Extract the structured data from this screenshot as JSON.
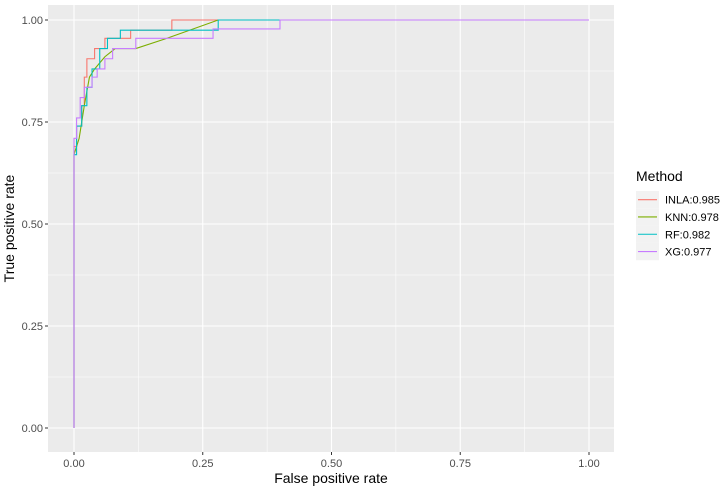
{
  "chart_data": {
    "type": "line",
    "title": "",
    "xlabel": "False positive rate",
    "ylabel": "True positive rate",
    "xlim": [
      0,
      1
    ],
    "ylim": [
      0,
      1
    ],
    "xticks": [
      0,
      0.25,
      0.5,
      0.75,
      1
    ],
    "xtick_labels": [
      "0.00",
      "0.25",
      "0.50",
      "0.75",
      "1.00"
    ],
    "yticks": [
      0,
      0.25,
      0.5,
      0.75,
      1
    ],
    "ytick_labels": [
      "0.00",
      "0.25",
      "0.50",
      "0.75",
      "1.00"
    ],
    "grid": true,
    "legend": {
      "title": "Method",
      "position": "right"
    },
    "series": [
      {
        "name": "INLA:0.985",
        "color": "#F8766D",
        "x": [
          0,
          0,
          0.005,
          0.005,
          0.015,
          0.015,
          0.02,
          0.02,
          0.025,
          0.025,
          0.04,
          0.04,
          0.06,
          0.06,
          0.11,
          0.11,
          0.19,
          0.19,
          1
        ],
        "y": [
          0,
          0.69,
          0.69,
          0.74,
          0.74,
          0.79,
          0.79,
          0.86,
          0.86,
          0.905,
          0.905,
          0.93,
          0.93,
          0.955,
          0.955,
          0.975,
          0.975,
          1,
          1
        ]
      },
      {
        "name": "KNN:0.978",
        "color": "#7CAE00",
        "x": [
          0,
          0,
          0.01,
          0.02,
          0.03,
          0.04,
          0.06,
          0.08,
          0.12,
          0.18,
          0.28,
          1
        ],
        "y": [
          0,
          0.67,
          0.71,
          0.79,
          0.86,
          0.88,
          0.91,
          0.93,
          0.93,
          0.955,
          1,
          1
        ]
      },
      {
        "name": "RF:0.982",
        "color": "#00BFC4",
        "x": [
          0,
          0,
          0.005,
          0.005,
          0.015,
          0.015,
          0.025,
          0.025,
          0.035,
          0.035,
          0.05,
          0.05,
          0.065,
          0.065,
          0.09,
          0.09,
          0.28,
          0.28,
          1
        ],
        "y": [
          0,
          0.67,
          0.67,
          0.74,
          0.74,
          0.79,
          0.79,
          0.835,
          0.835,
          0.88,
          0.88,
          0.93,
          0.93,
          0.955,
          0.955,
          0.975,
          0.975,
          1,
          1
        ]
      },
      {
        "name": "XG:0.977",
        "color": "#C77CFF",
        "x": [
          0,
          0,
          0.005,
          0.005,
          0.012,
          0.012,
          0.02,
          0.02,
          0.035,
          0.035,
          0.045,
          0.045,
          0.06,
          0.06,
          0.075,
          0.075,
          0.12,
          0.12,
          0.27,
          0.27,
          0.4,
          0.4,
          1
        ],
        "y": [
          0,
          0.71,
          0.71,
          0.76,
          0.76,
          0.81,
          0.81,
          0.835,
          0.835,
          0.86,
          0.86,
          0.88,
          0.88,
          0.905,
          0.905,
          0.93,
          0.93,
          0.955,
          0.955,
          0.978,
          0.978,
          1,
          1
        ]
      }
    ]
  }
}
